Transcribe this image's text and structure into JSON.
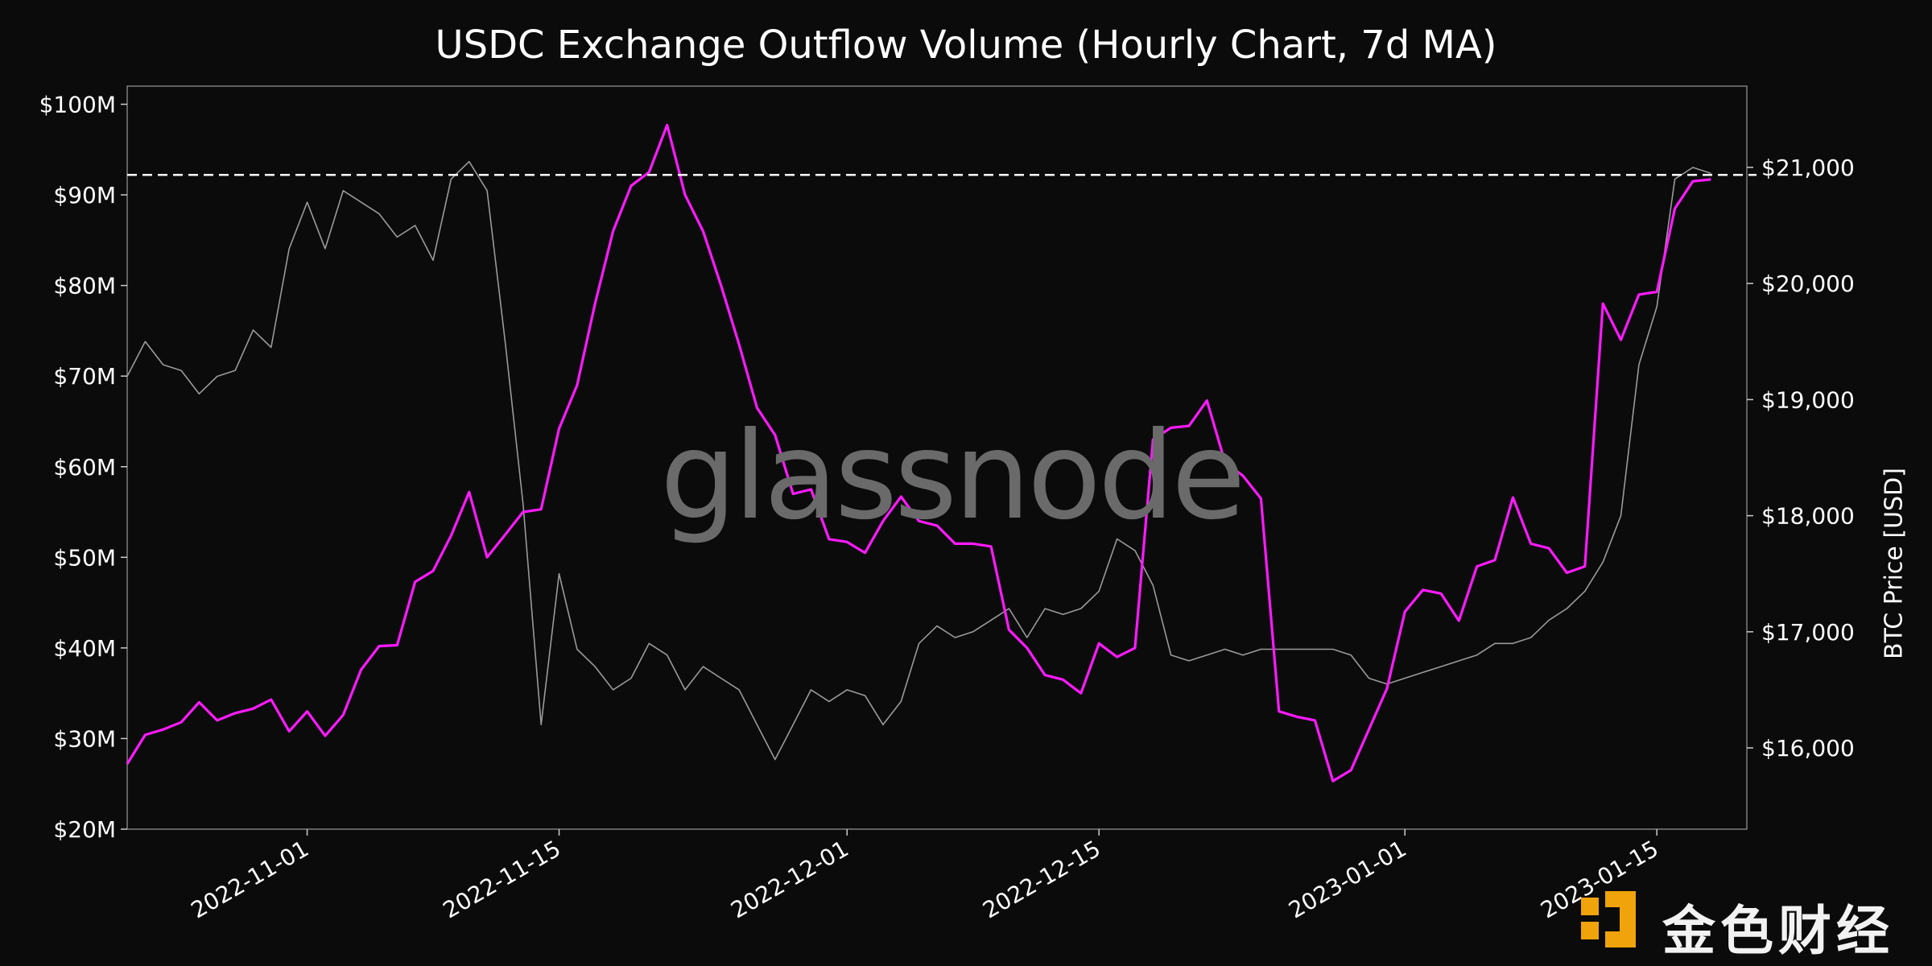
{
  "chart_data": {
    "type": "line",
    "title": "USDC Exchange Outflow Volume (Hourly Chart, 7d MA)",
    "xlabel": "",
    "ylabel_left": "",
    "ylabel_right": "BTC Price [USD]",
    "x_tick_labels": [
      "2022-11-01",
      "2022-11-15",
      "2022-12-01",
      "2022-12-15",
      "2023-01-01",
      "2023-01-15"
    ],
    "x_range": [
      "2022-10-22",
      "2023-01-20"
    ],
    "y_left_ticks": [
      "$20M",
      "$30M",
      "$40M",
      "$50M",
      "$60M",
      "$70M",
      "$80M",
      "$90M",
      "$100M"
    ],
    "y_left_range": [
      20,
      102
    ],
    "y_right_ticks": [
      "$16,000",
      "$17,000",
      "$18,000",
      "$19,000",
      "$20,000",
      "$21,000"
    ],
    "y_right_range": [
      15300,
      21700
    ],
    "reference_line": {
      "axis": "left",
      "value": 92.2,
      "style": "dashed",
      "color": "#ffffff"
    },
    "grid": false,
    "legend": "none",
    "series": [
      {
        "axis": "left",
        "unit": "USD millions",
        "color": "#ff1aff",
        "points": [
          [
            "2022-10-22",
            27.2
          ],
          [
            "2022-10-23",
            30.4
          ],
          [
            "2022-10-24",
            31.0
          ],
          [
            "2022-10-25",
            31.8
          ],
          [
            "2022-10-26",
            34.0
          ],
          [
            "2022-10-27",
            32.0
          ],
          [
            "2022-10-28",
            32.8
          ],
          [
            "2022-10-29",
            33.3
          ],
          [
            "2022-10-30",
            34.3
          ],
          [
            "2022-10-31",
            30.8
          ],
          [
            "2022-11-01",
            33.0
          ],
          [
            "2022-11-02",
            30.3
          ],
          [
            "2022-11-03",
            32.6
          ],
          [
            "2022-11-04",
            37.6
          ],
          [
            "2022-11-05",
            40.2
          ],
          [
            "2022-11-06",
            40.3
          ],
          [
            "2022-11-07",
            47.3
          ],
          [
            "2022-11-08",
            48.5
          ],
          [
            "2022-11-09",
            52.4
          ],
          [
            "2022-11-10",
            57.2
          ],
          [
            "2022-11-11",
            50.0
          ],
          [
            "2022-11-12",
            52.5
          ],
          [
            "2022-11-13",
            55.0
          ],
          [
            "2022-11-14",
            55.3
          ],
          [
            "2022-11-15",
            64.2
          ],
          [
            "2022-11-16",
            69.0
          ],
          [
            "2022-11-17",
            78.0
          ],
          [
            "2022-11-18",
            86.0
          ],
          [
            "2022-11-19",
            91.0
          ],
          [
            "2022-11-20",
            92.5
          ],
          [
            "2022-11-21",
            97.7
          ],
          [
            "2022-11-22",
            90.0
          ],
          [
            "2022-11-23",
            86.0
          ],
          [
            "2022-11-24",
            80.0
          ],
          [
            "2022-11-25",
            73.5
          ],
          [
            "2022-11-26",
            66.5
          ],
          [
            "2022-11-27",
            63.5
          ],
          [
            "2022-11-28",
            57.0
          ],
          [
            "2022-11-29",
            57.5
          ],
          [
            "2022-11-30",
            52.0
          ],
          [
            "2022-12-01",
            51.7
          ],
          [
            "2022-12-02",
            50.5
          ],
          [
            "2022-12-03",
            54.0
          ],
          [
            "2022-12-04",
            56.7
          ],
          [
            "2022-12-05",
            54.0
          ],
          [
            "2022-12-06",
            53.5
          ],
          [
            "2022-12-07",
            51.5
          ],
          [
            "2022-12-08",
            51.5
          ],
          [
            "2022-12-09",
            51.2
          ],
          [
            "2022-12-10",
            42.0
          ],
          [
            "2022-12-11",
            40.0
          ],
          [
            "2022-12-12",
            37.0
          ],
          [
            "2022-12-13",
            36.5
          ],
          [
            "2022-12-14",
            35.0
          ],
          [
            "2022-12-15",
            40.5
          ],
          [
            "2022-12-16",
            39.0
          ],
          [
            "2022-12-17",
            40.0
          ],
          [
            "2022-12-18",
            63.0
          ],
          [
            "2022-12-19",
            64.3
          ],
          [
            "2022-12-20",
            64.5
          ],
          [
            "2022-12-21",
            67.3
          ],
          [
            "2022-12-22",
            60.5
          ],
          [
            "2022-12-23",
            59.0
          ],
          [
            "2022-12-24",
            56.5
          ],
          [
            "2022-12-25",
            33.0
          ],
          [
            "2022-12-26",
            32.4
          ],
          [
            "2022-12-27",
            32.0
          ],
          [
            "2022-12-28",
            25.3
          ],
          [
            "2022-12-29",
            26.5
          ],
          [
            "2022-12-30",
            31.0
          ],
          [
            "2022-12-31",
            35.5
          ],
          [
            "2023-01-01",
            44.0
          ],
          [
            "2023-01-02",
            46.4
          ],
          [
            "2023-01-03",
            46.0
          ],
          [
            "2023-01-04",
            43.0
          ],
          [
            "2023-01-05",
            49.0
          ],
          [
            "2023-01-06",
            49.7
          ],
          [
            "2023-01-07",
            56.6
          ],
          [
            "2023-01-08",
            51.5
          ],
          [
            "2023-01-09",
            51.0
          ],
          [
            "2023-01-10",
            48.3
          ],
          [
            "2023-01-11",
            49.0
          ],
          [
            "2023-01-12",
            78.0
          ],
          [
            "2023-01-13",
            74.0
          ],
          [
            "2023-01-14",
            79.0
          ],
          [
            "2023-01-15",
            79.3
          ],
          [
            "2023-01-16",
            88.5
          ],
          [
            "2023-01-17",
            91.5
          ],
          [
            "2023-01-18",
            91.7
          ]
        ]
      },
      {
        "axis": "right",
        "unit": "USD",
        "color": "#9a9a9a",
        "points": [
          [
            "2022-10-22",
            19200
          ],
          [
            "2022-10-23",
            19500
          ],
          [
            "2022-10-24",
            19300
          ],
          [
            "2022-10-25",
            19250
          ],
          [
            "2022-10-26",
            19050
          ],
          [
            "2022-10-27",
            19200
          ],
          [
            "2022-10-28",
            19250
          ],
          [
            "2022-10-29",
            19600
          ],
          [
            "2022-10-30",
            19450
          ],
          [
            "2022-10-31",
            20300
          ],
          [
            "2022-11-01",
            20700
          ],
          [
            "2022-11-02",
            20300
          ],
          [
            "2022-11-03",
            20800
          ],
          [
            "2022-11-04",
            20700
          ],
          [
            "2022-11-05",
            20600
          ],
          [
            "2022-11-06",
            20400
          ],
          [
            "2022-11-07",
            20500
          ],
          [
            "2022-11-08",
            20200
          ],
          [
            "2022-11-09",
            20900
          ],
          [
            "2022-11-10",
            21050
          ],
          [
            "2022-11-11",
            20800
          ],
          [
            "2022-11-12",
            19500
          ],
          [
            "2022-11-13",
            18100
          ],
          [
            "2022-11-14",
            16200
          ],
          [
            "2022-11-15",
            17500
          ],
          [
            "2022-11-16",
            16850
          ],
          [
            "2022-11-17",
            16700
          ],
          [
            "2022-11-18",
            16500
          ],
          [
            "2022-11-19",
            16600
          ],
          [
            "2022-11-20",
            16900
          ],
          [
            "2022-11-21",
            16800
          ],
          [
            "2022-11-22",
            16500
          ],
          [
            "2022-11-23",
            16700
          ],
          [
            "2022-11-24",
            16600
          ],
          [
            "2022-11-25",
            16500
          ],
          [
            "2022-11-26",
            16200
          ],
          [
            "2022-11-27",
            15900
          ],
          [
            "2022-11-28",
            16200
          ],
          [
            "2022-11-29",
            16500
          ],
          [
            "2022-11-30",
            16400
          ],
          [
            "2022-12-01",
            16500
          ],
          [
            "2022-12-02",
            16450
          ],
          [
            "2022-12-03",
            16200
          ],
          [
            "2022-12-04",
            16400
          ],
          [
            "2022-12-05",
            16900
          ],
          [
            "2022-12-06",
            17050
          ],
          [
            "2022-12-07",
            16950
          ],
          [
            "2022-12-08",
            17000
          ],
          [
            "2022-12-09",
            17100
          ],
          [
            "2022-12-10",
            17200
          ],
          [
            "2022-12-11",
            16950
          ],
          [
            "2022-12-12",
            17200
          ],
          [
            "2022-12-13",
            17150
          ],
          [
            "2022-12-14",
            17200
          ],
          [
            "2022-12-15",
            17350
          ],
          [
            "2022-12-16",
            17800
          ],
          [
            "2022-12-17",
            17700
          ],
          [
            "2022-12-18",
            17400
          ],
          [
            "2022-12-19",
            16800
          ],
          [
            "2022-12-20",
            16750
          ],
          [
            "2022-12-21",
            16800
          ],
          [
            "2022-12-22",
            16850
          ],
          [
            "2022-12-23",
            16800
          ],
          [
            "2022-12-24",
            16850
          ],
          [
            "2022-12-25",
            16850
          ],
          [
            "2022-12-26",
            16850
          ],
          [
            "2022-12-27",
            16850
          ],
          [
            "2022-12-28",
            16850
          ],
          [
            "2022-12-29",
            16800
          ],
          [
            "2022-12-30",
            16600
          ],
          [
            "2022-12-31",
            16550
          ],
          [
            "2023-01-01",
            16600
          ],
          [
            "2023-01-02",
            16650
          ],
          [
            "2023-01-03",
            16700
          ],
          [
            "2023-01-04",
            16750
          ],
          [
            "2023-01-05",
            16800
          ],
          [
            "2023-01-06",
            16900
          ],
          [
            "2023-01-07",
            16900
          ],
          [
            "2023-01-08",
            16950
          ],
          [
            "2023-01-09",
            17100
          ],
          [
            "2023-01-10",
            17200
          ],
          [
            "2023-01-11",
            17350
          ],
          [
            "2023-01-12",
            17600
          ],
          [
            "2023-01-13",
            18000
          ],
          [
            "2023-01-14",
            19300
          ],
          [
            "2023-01-15",
            19800
          ],
          [
            "2023-01-16",
            20900
          ],
          [
            "2023-01-17",
            21000
          ],
          [
            "2023-01-18",
            20950
          ]
        ]
      }
    ]
  },
  "watermark": "glassnode",
  "brand_logo_text": "金色财经"
}
